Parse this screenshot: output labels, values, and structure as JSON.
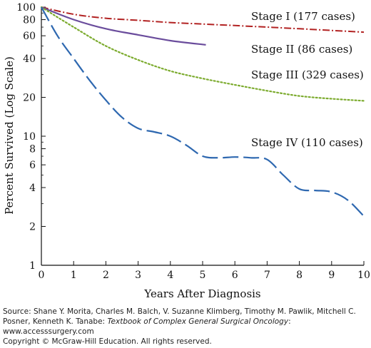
{
  "chart_data": {
    "type": "line",
    "ylabel": "Percent Survived (Log Scale)",
    "xlabel": "Years After Diagnosis",
    "y_scale": "log",
    "xlim": [
      0,
      10
    ],
    "ylim": [
      1,
      100
    ],
    "x_ticks": [
      0,
      1,
      2,
      3,
      4,
      5,
      6,
      7,
      8,
      9,
      10
    ],
    "x_tick_labels": [
      "0",
      "1",
      "2",
      "3",
      "4",
      "5",
      "6",
      "7",
      "8",
      "9",
      "10"
    ],
    "y_ticks": [
      1,
      2,
      4,
      6,
      8,
      10,
      20,
      40,
      60,
      80,
      100
    ],
    "y_tick_labels": [
      "1",
      "2",
      "4",
      "6",
      "8",
      "10",
      "20",
      "40",
      "60",
      "80",
      "100"
    ],
    "grid": false,
    "series": [
      {
        "name": "Stage I (177 cases)",
        "color": "#b22222",
        "style": "dash-dot",
        "x": [
          0,
          1,
          2,
          3,
          4,
          5,
          6,
          7,
          8,
          9,
          10
        ],
        "y": [
          100,
          88,
          82,
          79,
          76,
          74,
          72,
          70,
          68,
          66,
          64
        ]
      },
      {
        "name": "Stage II (86 cases)",
        "color": "#6a4c9c",
        "style": "solid",
        "x": [
          0,
          1,
          2,
          3,
          4,
          5.1
        ],
        "y": [
          100,
          80,
          68,
          61,
          55,
          51
        ]
      },
      {
        "name": "Stage III (329 cases)",
        "color": "#7cab2e",
        "style": "dotted",
        "x": [
          0,
          1,
          2,
          3,
          4,
          5,
          6,
          7,
          8,
          9,
          10
        ],
        "y": [
          100,
          70,
          50,
          39,
          32,
          28,
          25,
          22.5,
          20.5,
          19.5,
          18.8
        ]
      },
      {
        "name": "Stage IV (110 cases)",
        "color": "#2e68b0",
        "style": "long-dash",
        "x": [
          0,
          0.5,
          1,
          1.5,
          2,
          2.5,
          3,
          3.5,
          4,
          4.5,
          5,
          5.5,
          6,
          6.5,
          7,
          7.5,
          8,
          8.5,
          9,
          9.5,
          10
        ],
        "y": [
          100,
          60,
          40,
          27,
          19,
          14,
          11.5,
          10.8,
          10,
          8.5,
          7,
          6.8,
          6.9,
          6.8,
          6.6,
          5,
          3.9,
          3.8,
          3.7,
          3.2,
          2.4
        ]
      }
    ]
  },
  "footer": {
    "source_prefix": "Source: Shane Y. Morita, Charles M. Balch, V. Suzanne Klimberg, Timothy M. Pawlik, Mitchell C. Posner, Kenneth K. Tanabe:",
    "book_title": "Textbook of Complex General Surgical Oncology",
    "book_suffix": ":",
    "url": "www.accesssurgery.com",
    "copyright": "Copyright © McGraw-Hill Education. All rights reserved."
  }
}
